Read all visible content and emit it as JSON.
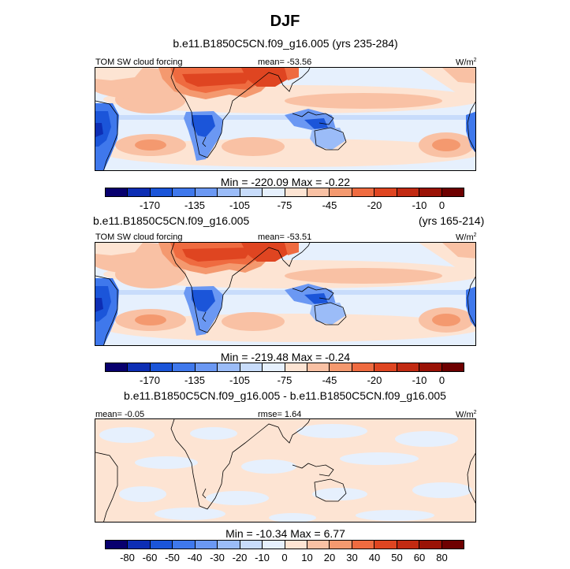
{
  "header": {
    "season": "DJF",
    "case1_title": "b.e11.B1850C5CN.f09_g16.005 (yrs 235-284)",
    "case2_title": "b.e11.B1850C5CN.f09_g16.005",
    "case2_years": "(yrs 165-214)",
    "diff_title": "b.e11.B1850C5CN.f09_g16.005 - b.e11.B1850C5CN.f09_g16.005"
  },
  "colors": {
    "sequence": [
      "#08006e",
      "#0d2eb4",
      "#1b55d9",
      "#3f78ec",
      "#6b98f3",
      "#9bbcf8",
      "#c8dcfb",
      "#e6f0fd",
      "#fde4d3",
      "#f9c1a4",
      "#f4996f",
      "#ef6b40",
      "#df4521",
      "#c22a12",
      "#9a1206",
      "#6e0000"
    ],
    "land": "#000000"
  },
  "chart_data": [
    {
      "type": "heatmap",
      "name": "panel-1",
      "field_label": "TOM SW cloud forcing",
      "mean_text": "mean= -53.56",
      "units": "W/m",
      "units_sup": "2",
      "stats_text": "Min = -220.09 Max =  -0.22",
      "levels": [
        "-170",
        "-135",
        "-105",
        "-75",
        "-45",
        "-20",
        "-10",
        "0"
      ],
      "min": -220.09,
      "max": -0.22,
      "mean": -53.56
    },
    {
      "type": "heatmap",
      "name": "panel-2",
      "field_label": "TOM SW cloud forcing",
      "mean_text": "mean= -53.51",
      "units": "W/m",
      "units_sup": "2",
      "stats_text": "Min = -219.48 Max =  -0.24",
      "levels": [
        "-170",
        "-135",
        "-105",
        "-75",
        "-45",
        "-20",
        "-10",
        "0"
      ],
      "min": -219.48,
      "max": -0.24,
      "mean": -53.51
    },
    {
      "type": "heatmap",
      "name": "panel-3-difference",
      "mean_text": "mean=  -0.05",
      "rmse_text": "rmse=   1.64",
      "units": "W/m",
      "units_sup": "2",
      "stats_text": "Min = -10.34 Max =   6.77",
      "levels": [
        "-80",
        "-60",
        "-50",
        "-40",
        "-30",
        "-20",
        "-10",
        "0",
        "10",
        "20",
        "30",
        "40",
        "50",
        "60",
        "80"
      ],
      "min": -10.34,
      "max": 6.77,
      "mean": -0.05,
      "rmse": 1.64
    }
  ]
}
